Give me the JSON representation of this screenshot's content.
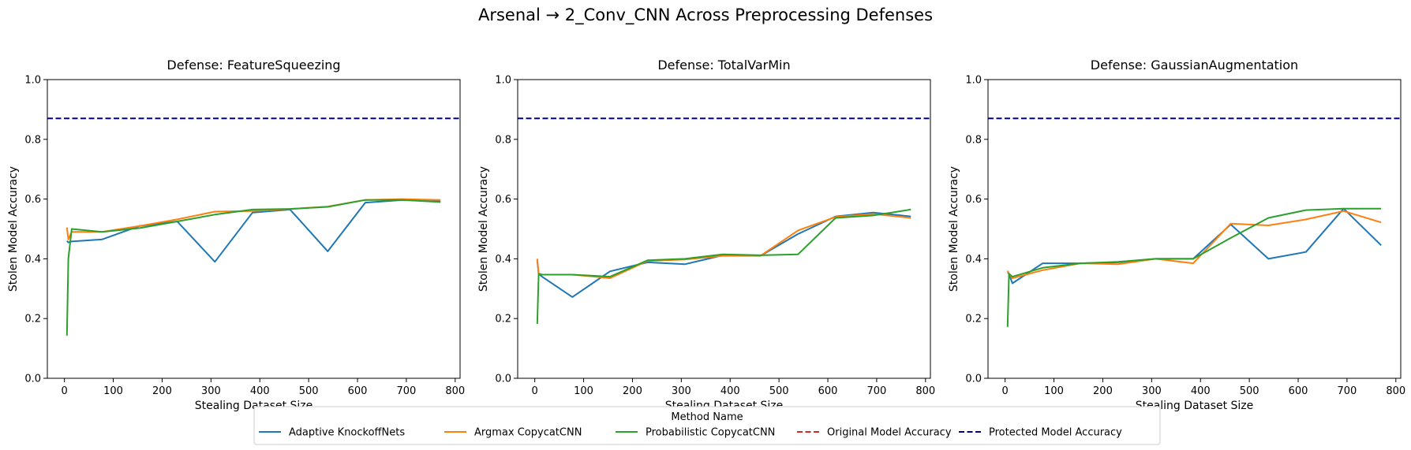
{
  "suptitle": "Arsenal → 2_Conv_CNN Across Preprocessing Defenses",
  "legend": {
    "title": "Method Name",
    "placement": "lower-center",
    "entries": [
      {
        "label": "Adaptive KnockoffNets",
        "color": "#1f77b4",
        "dash": "solid"
      },
      {
        "label": "Argmax CopycatCNN",
        "color": "#ff7f0e",
        "dash": "solid"
      },
      {
        "label": "Probabilistic CopycatCNN",
        "color": "#2ca02c",
        "dash": "solid"
      },
      {
        "label": "Original Model Accuracy",
        "color": "#d62728",
        "dash": "dashed"
      },
      {
        "label": "Protected Model Accuracy",
        "color": "#00008b",
        "dash": "dashed"
      }
    ]
  },
  "chart_data": [
    {
      "type": "line",
      "title": "Defense: FeatureSqueezing",
      "xlabel": "Stealing Dataset Size",
      "ylabel": "Stolen Model Accuracy",
      "xlim": [
        -35,
        810
      ],
      "ylim": [
        0,
        1.0
      ],
      "xticks": [
        0,
        100,
        200,
        300,
        400,
        500,
        600,
        700,
        800
      ],
      "yticks": [
        0.0,
        0.2,
        0.4,
        0.6,
        0.8,
        1.0
      ],
      "grid": false,
      "hlines": [
        {
          "name": "Protected Model Accuracy",
          "y": 0.87,
          "color": "#00008b"
        }
      ],
      "series": [
        {
          "name": "Adaptive KnockoffNets",
          "color": "#1f77b4",
          "x": [
            5,
            8,
            15,
            77,
            154,
            231,
            308,
            385,
            462,
            539,
            616,
            693,
            770
          ],
          "y": [
            0.46,
            0.455,
            0.458,
            0.465,
            0.51,
            0.525,
            0.39,
            0.555,
            0.565,
            0.425,
            0.588,
            0.597,
            0.592
          ]
        },
        {
          "name": "Argmax CopycatCNN",
          "color": "#ff7f0e",
          "x": [
            5,
            8,
            15,
            77,
            154,
            231,
            308,
            385,
            462,
            539,
            616,
            693,
            770
          ],
          "y": [
            0.505,
            0.465,
            0.49,
            0.49,
            0.51,
            0.532,
            0.558,
            0.56,
            0.567,
            0.575,
            0.597,
            0.6,
            0.597
          ]
        },
        {
          "name": "Probabilistic CopycatCNN",
          "color": "#2ca02c",
          "x": [
            5,
            8,
            15,
            77,
            154,
            231,
            308,
            385,
            462,
            539,
            616,
            693,
            770
          ],
          "y": [
            0.143,
            0.4,
            0.5,
            0.49,
            0.503,
            0.525,
            0.548,
            0.565,
            0.567,
            0.574,
            0.597,
            0.597,
            0.59
          ]
        }
      ]
    },
    {
      "type": "line",
      "title": "Defense: TotalVarMin",
      "xlabel": "Stealing Dataset Size",
      "ylabel": "Stolen Model Accuracy",
      "xlim": [
        -35,
        810
      ],
      "ylim": [
        0,
        1.0
      ],
      "xticks": [
        0,
        100,
        200,
        300,
        400,
        500,
        600,
        700,
        800
      ],
      "yticks": [
        0.0,
        0.2,
        0.4,
        0.6,
        0.8,
        1.0
      ],
      "grid": false,
      "hlines": [
        {
          "name": "Protected Model Accuracy",
          "y": 0.87,
          "color": "#00008b"
        }
      ],
      "series": [
        {
          "name": "Adaptive KnockoffNets",
          "color": "#1f77b4",
          "x": [
            5,
            8,
            15,
            77,
            154,
            231,
            308,
            385,
            462,
            539,
            616,
            693,
            770
          ],
          "y": [
            0.395,
            0.35,
            0.34,
            0.272,
            0.358,
            0.388,
            0.382,
            0.412,
            0.41,
            0.483,
            0.542,
            0.555,
            0.542
          ]
        },
        {
          "name": "Argmax CopycatCNN",
          "color": "#ff7f0e",
          "x": [
            5,
            8,
            15,
            77,
            154,
            231,
            308,
            385,
            462,
            539,
            616,
            693,
            770
          ],
          "y": [
            0.4,
            0.35,
            0.347,
            0.347,
            0.335,
            0.393,
            0.398,
            0.41,
            0.41,
            0.495,
            0.54,
            0.55,
            0.537
          ]
        },
        {
          "name": "Probabilistic CopycatCNN",
          "color": "#2ca02c",
          "x": [
            5,
            8,
            15,
            77,
            154,
            231,
            308,
            385,
            462,
            539,
            616,
            693,
            770
          ],
          "y": [
            0.182,
            0.35,
            0.347,
            0.347,
            0.34,
            0.395,
            0.4,
            0.415,
            0.412,
            0.415,
            0.537,
            0.545,
            0.565
          ]
        }
      ]
    },
    {
      "type": "line",
      "title": "Defense: GaussianAugmentation",
      "xlabel": "Stealing Dataset Size",
      "ylabel": "Stolen Model Accuracy",
      "xlim": [
        -35,
        810
      ],
      "ylim": [
        0,
        1.0
      ],
      "xticks": [
        0,
        100,
        200,
        300,
        400,
        500,
        600,
        700,
        800
      ],
      "yticks": [
        0.0,
        0.2,
        0.4,
        0.6,
        0.8,
        1.0
      ],
      "grid": false,
      "hlines": [
        {
          "name": "Protected Model Accuracy",
          "y": 0.87,
          "color": "#00008b"
        }
      ],
      "series": [
        {
          "name": "Adaptive KnockoffNets",
          "color": "#1f77b4",
          "x": [
            5,
            8,
            15,
            77,
            154,
            231,
            308,
            385,
            462,
            539,
            616,
            693,
            770
          ],
          "y": [
            0.355,
            0.35,
            0.318,
            0.385,
            0.385,
            0.388,
            0.4,
            0.4,
            0.515,
            0.4,
            0.423,
            0.568,
            0.445
          ]
        },
        {
          "name": "Argmax CopycatCNN",
          "color": "#ff7f0e",
          "x": [
            5,
            8,
            15,
            77,
            154,
            231,
            308,
            385,
            462,
            539,
            616,
            693,
            770
          ],
          "y": [
            0.36,
            0.35,
            0.335,
            0.362,
            0.385,
            0.382,
            0.4,
            0.385,
            0.518,
            0.512,
            0.532,
            0.56,
            0.522
          ]
        },
        {
          "name": "Probabilistic CopycatCNN",
          "color": "#2ca02c",
          "x": [
            5,
            8,
            15,
            77,
            154,
            231,
            308,
            385,
            462,
            539,
            616,
            693,
            770
          ],
          "y": [
            0.172,
            0.35,
            0.34,
            0.37,
            0.385,
            0.39,
            0.4,
            0.4,
            0.47,
            0.537,
            0.563,
            0.568,
            0.568
          ]
        }
      ]
    }
  ]
}
